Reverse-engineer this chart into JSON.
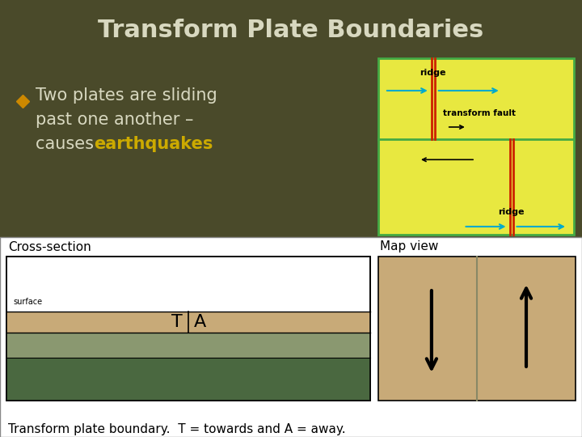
{
  "title": "Transform Plate Boundaries",
  "title_color": "#d8d8c0",
  "bg_color": "#4a4a2a",
  "bullet_color": "#cc8800",
  "bullet_text_color": "#d8d8c0",
  "earthquake_color": "#ccaa00",
  "text_line1": "Two plates are sliding",
  "text_line2": "past one another –",
  "text_line3": "causes ",
  "text_earthquake": "earthquakes",
  "bottom_panel_bg": "#ffffff",
  "bottom_label": "Transform plate boundary.  T = towards and A = away.",
  "cross_section_label": "Cross-section",
  "map_view_label": "Map view",
  "ridge_diagram_bg": "#e8e840",
  "ridge_line_color": "#cc2200",
  "arrow_color": "#00aacc",
  "cross_white": "#ffffff",
  "cross_tan": "#c8aa78",
  "cross_green1": "#8a9870",
  "cross_green2": "#4a6840",
  "surface_label": "surface",
  "map_tan": "#c8aa78",
  "map_line": "#888866"
}
